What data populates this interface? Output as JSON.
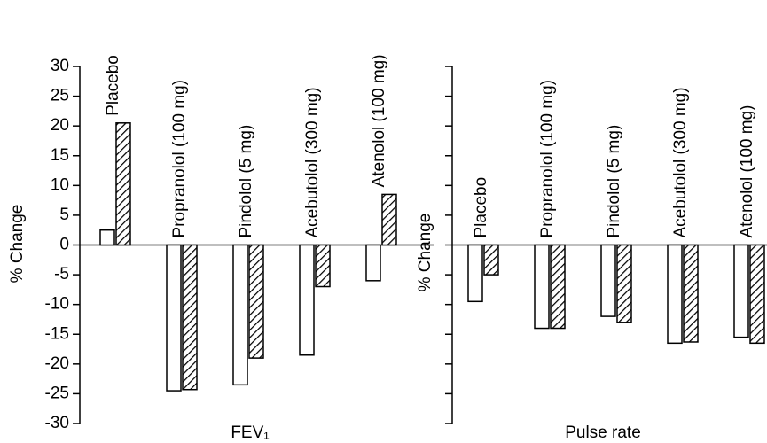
{
  "chart_data": [
    {
      "type": "bar",
      "xlabel": "FEV₁",
      "ylabel": "% Change",
      "categories": [
        "Placebo",
        "Propranolol (100 mg)",
        "Pindolol (5 mg)",
        "Acebutolol (300 mg)",
        "Atenolol (100 mg)"
      ],
      "series": [
        {
          "color": "#ffffff",
          "values": [
            2.5,
            -24.5,
            -23.5,
            -18.5,
            -6
          ]
        },
        {
          "color": "#ffffff",
          "hatch": true,
          "values": [
            20.5,
            -24.3,
            -19,
            -7,
            8.5
          ]
        }
      ],
      "ylim": [
        -30,
        30
      ],
      "yticks": [
        -30,
        -25,
        -20,
        -15,
        -10,
        -5,
        0,
        5,
        10,
        15,
        20,
        25,
        30
      ]
    },
    {
      "type": "bar",
      "xlabel": "Pulse rate",
      "ylabel": "% Change",
      "categories": [
        "Placebo",
        "Propranolol (100 mg)",
        "Pindolol (5 mg)",
        "Acebutolol (300 mg)",
        "Atenolol (100 mg)"
      ],
      "series": [
        {
          "color": "#ffffff",
          "values": [
            -9.5,
            -14,
            -12,
            -16.5,
            -15.5
          ]
        },
        {
          "color": "#ffffff",
          "hatch": true,
          "values": [
            -5,
            -14,
            -13,
            -16.3,
            -16.5
          ]
        }
      ],
      "ylim": [
        -30,
        30
      ],
      "yticks": [
        -30,
        -25,
        -20,
        -15,
        -10,
        -5,
        0,
        5,
        10,
        15,
        20,
        25,
        30
      ]
    }
  ]
}
